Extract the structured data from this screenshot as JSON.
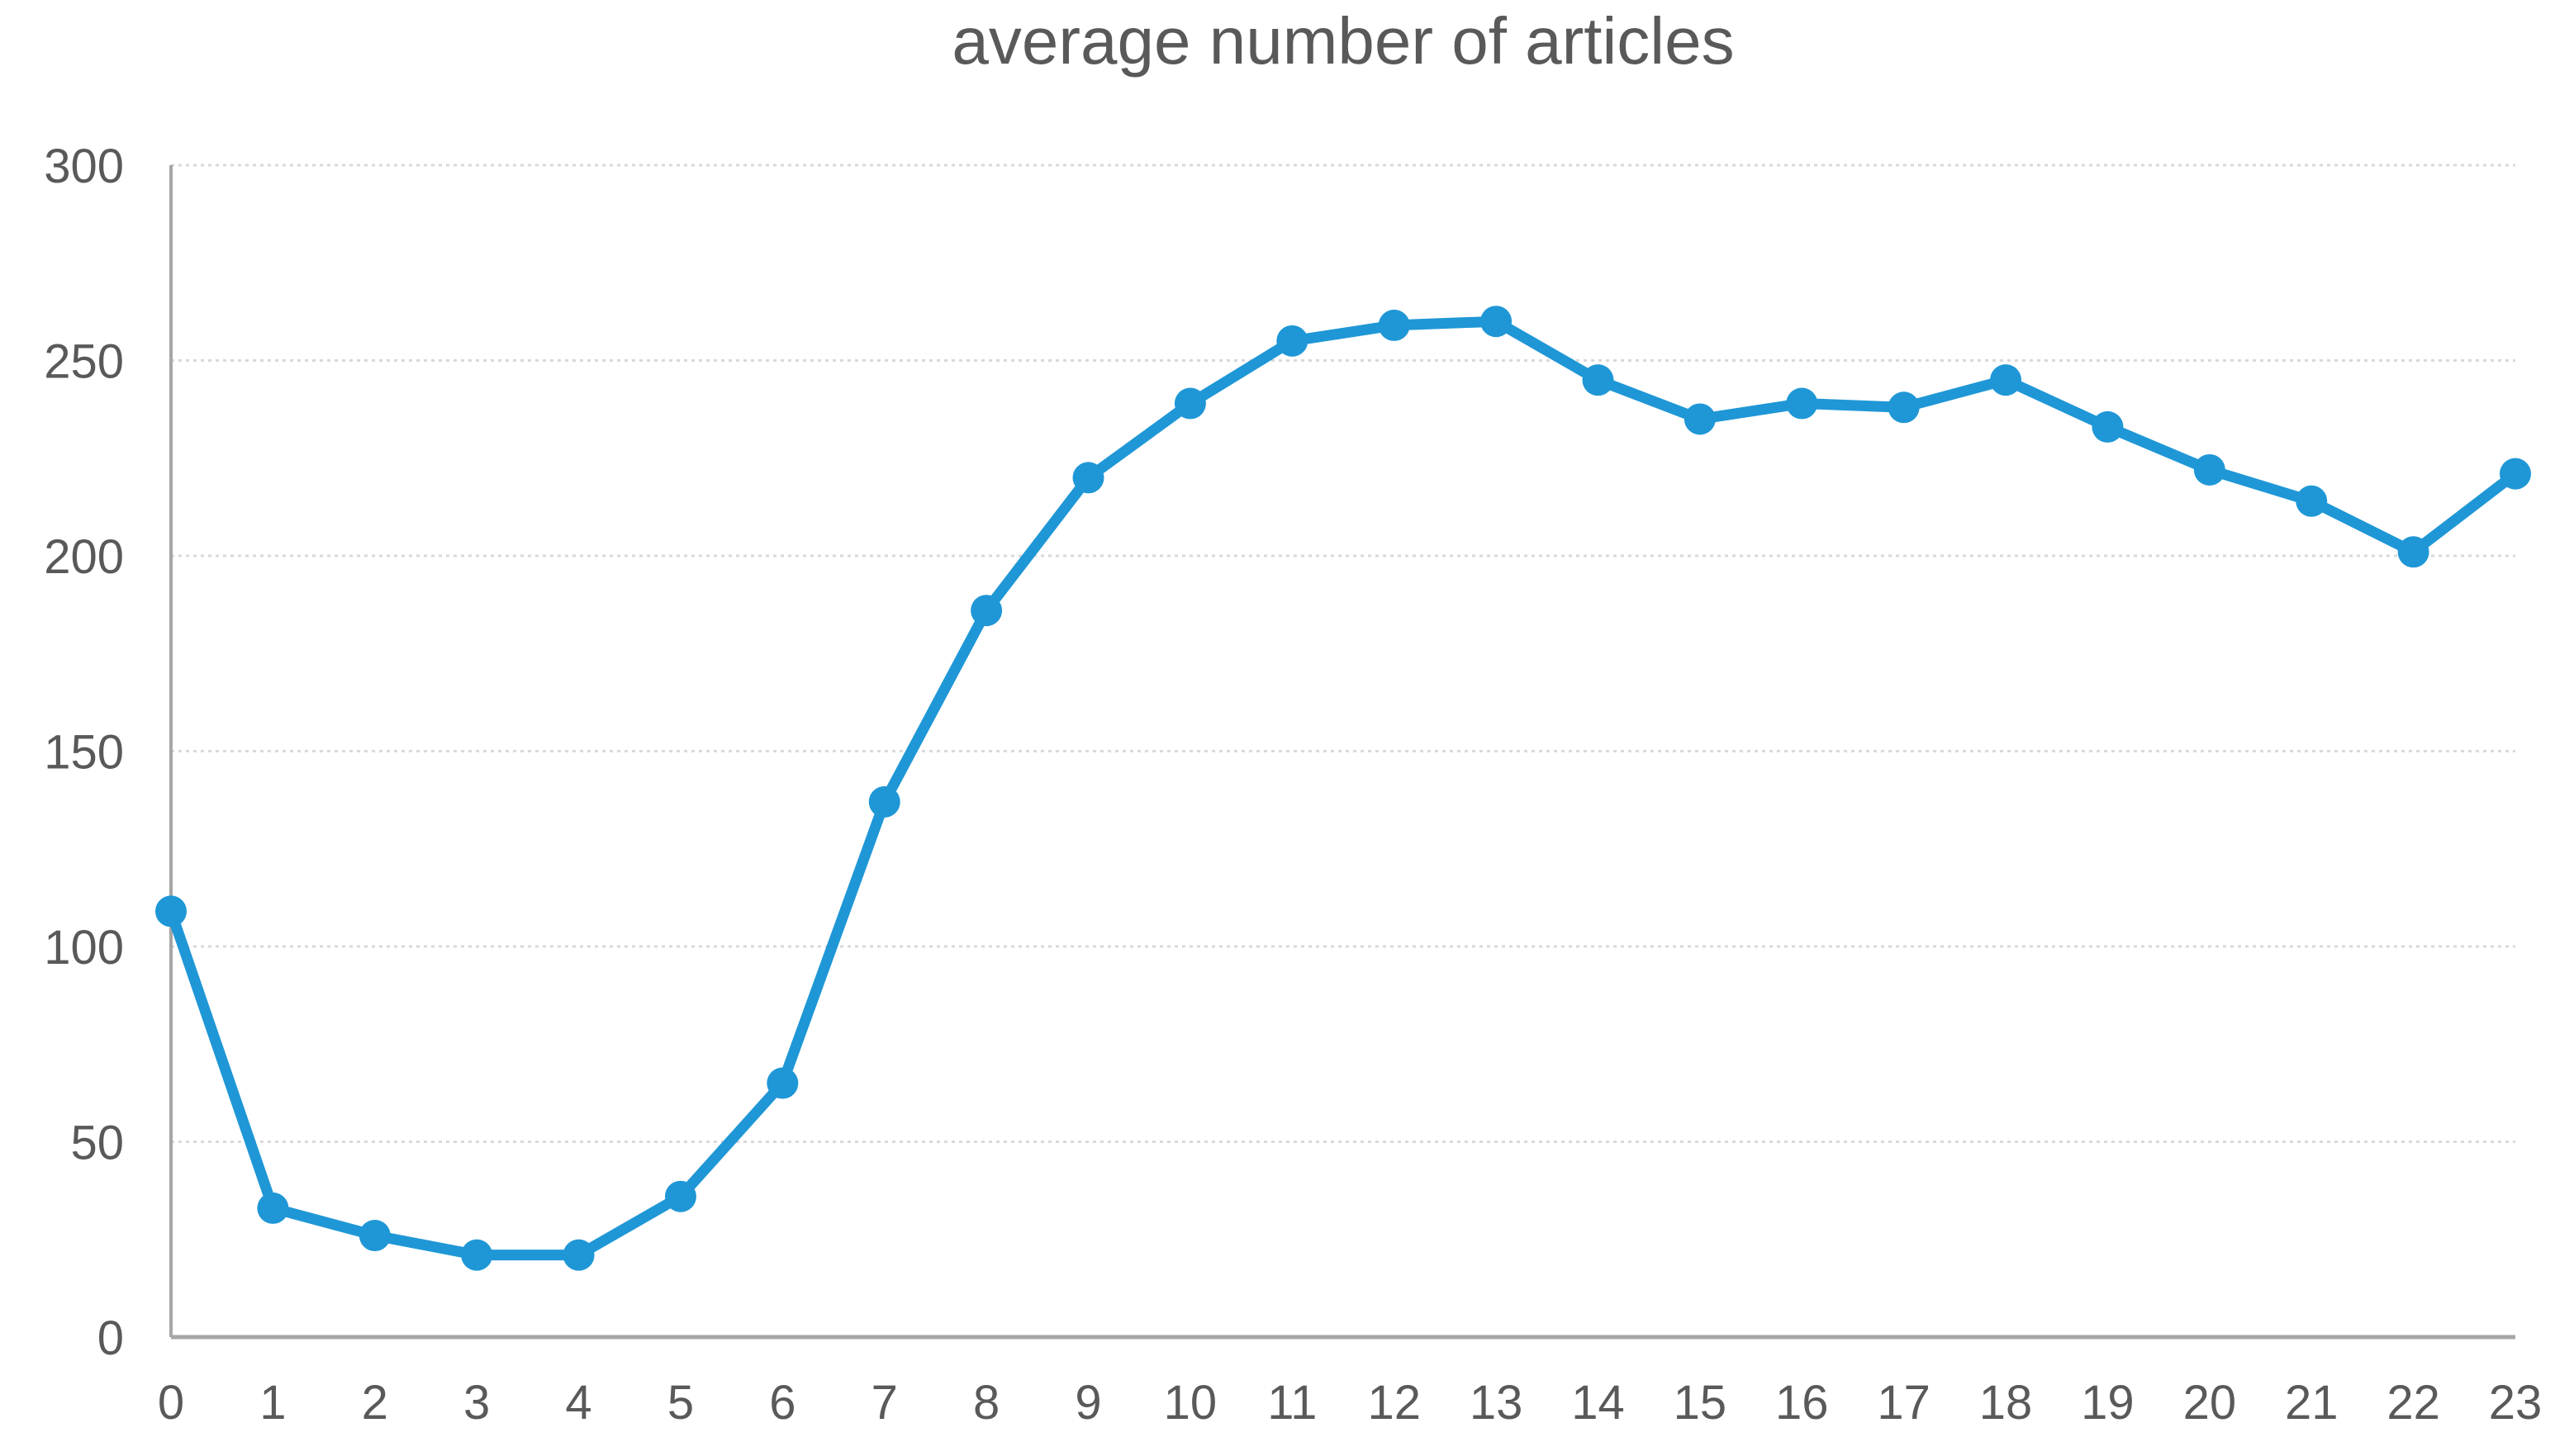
{
  "title": "average number of articles",
  "colors": {
    "series": "#1F97D6",
    "grid": "#D9D9D9",
    "axis": "#A6A6A6",
    "text": "#595959",
    "background": "#FFFFFF"
  },
  "chart_data": {
    "type": "line",
    "title": "average number of articles",
    "x": [
      0,
      1,
      2,
      3,
      4,
      5,
      6,
      7,
      8,
      9,
      10,
      11,
      12,
      13,
      14,
      15,
      16,
      17,
      18,
      19,
      20,
      21,
      22,
      23
    ],
    "series": [
      {
        "name": "average number of articles",
        "values": [
          109,
          33,
          26,
          21,
          21,
          36,
          65,
          137,
          186,
          220,
          239,
          255,
          259,
          260,
          245,
          235,
          239,
          238,
          245,
          233,
          222,
          214,
          201,
          221
        ]
      }
    ],
    "xlabel": "",
    "ylabel": "",
    "ylim": [
      0,
      300
    ],
    "yticks": [
      0,
      50,
      100,
      150,
      200,
      250,
      300
    ],
    "grid": true,
    "legend": false,
    "marker": "circle"
  }
}
